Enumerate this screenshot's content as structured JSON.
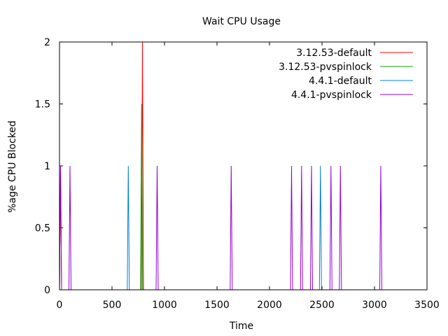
{
  "chart_data": {
    "type": "line",
    "title": "Wait CPU Usage",
    "xlabel": "Time",
    "ylabel": "%age CPU Blocked",
    "xlim": [
      0,
      3500
    ],
    "ylim": [
      0,
      2
    ],
    "x_ticks": [
      0,
      500,
      1000,
      1500,
      2000,
      2500,
      3000,
      3500
    ],
    "y_ticks": [
      0,
      0.5,
      1,
      1.5,
      2
    ],
    "x_tick_labels": [
      "0",
      "500",
      "1000",
      "1500",
      "2000",
      "2500",
      "3000",
      "3500"
    ],
    "y_tick_labels": [
      "0",
      "0.5",
      "1",
      "1.5",
      "2"
    ],
    "legend_position": "top-right",
    "grid": false,
    "series": [
      {
        "name": "3.12.53-default",
        "color": "#ff0000",
        "spikes": [
          {
            "x": 10,
            "y": 1
          },
          {
            "x": 790,
            "y": 2
          }
        ]
      },
      {
        "name": "3.12.53-pvspinlock",
        "color": "#00a000",
        "spikes": [
          {
            "x": 782,
            "y": 1.5
          }
        ]
      },
      {
        "name": "4.4.1-default",
        "color": "#0080d0",
        "spikes": [
          {
            "x": 655,
            "y": 1
          },
          {
            "x": 2485,
            "y": 1
          }
        ]
      },
      {
        "name": "4.4.1-pvspinlock",
        "color": "#9400d3",
        "spikes": [
          {
            "x": 10,
            "y": 1
          },
          {
            "x": 100,
            "y": 1
          },
          {
            "x": 930,
            "y": 1
          },
          {
            "x": 1635,
            "y": 1
          },
          {
            "x": 2210,
            "y": 1
          },
          {
            "x": 2305,
            "y": 1
          },
          {
            "x": 2400,
            "y": 1
          },
          {
            "x": 2585,
            "y": 1
          },
          {
            "x": 2675,
            "y": 1
          },
          {
            "x": 3060,
            "y": 1
          }
        ]
      }
    ]
  }
}
